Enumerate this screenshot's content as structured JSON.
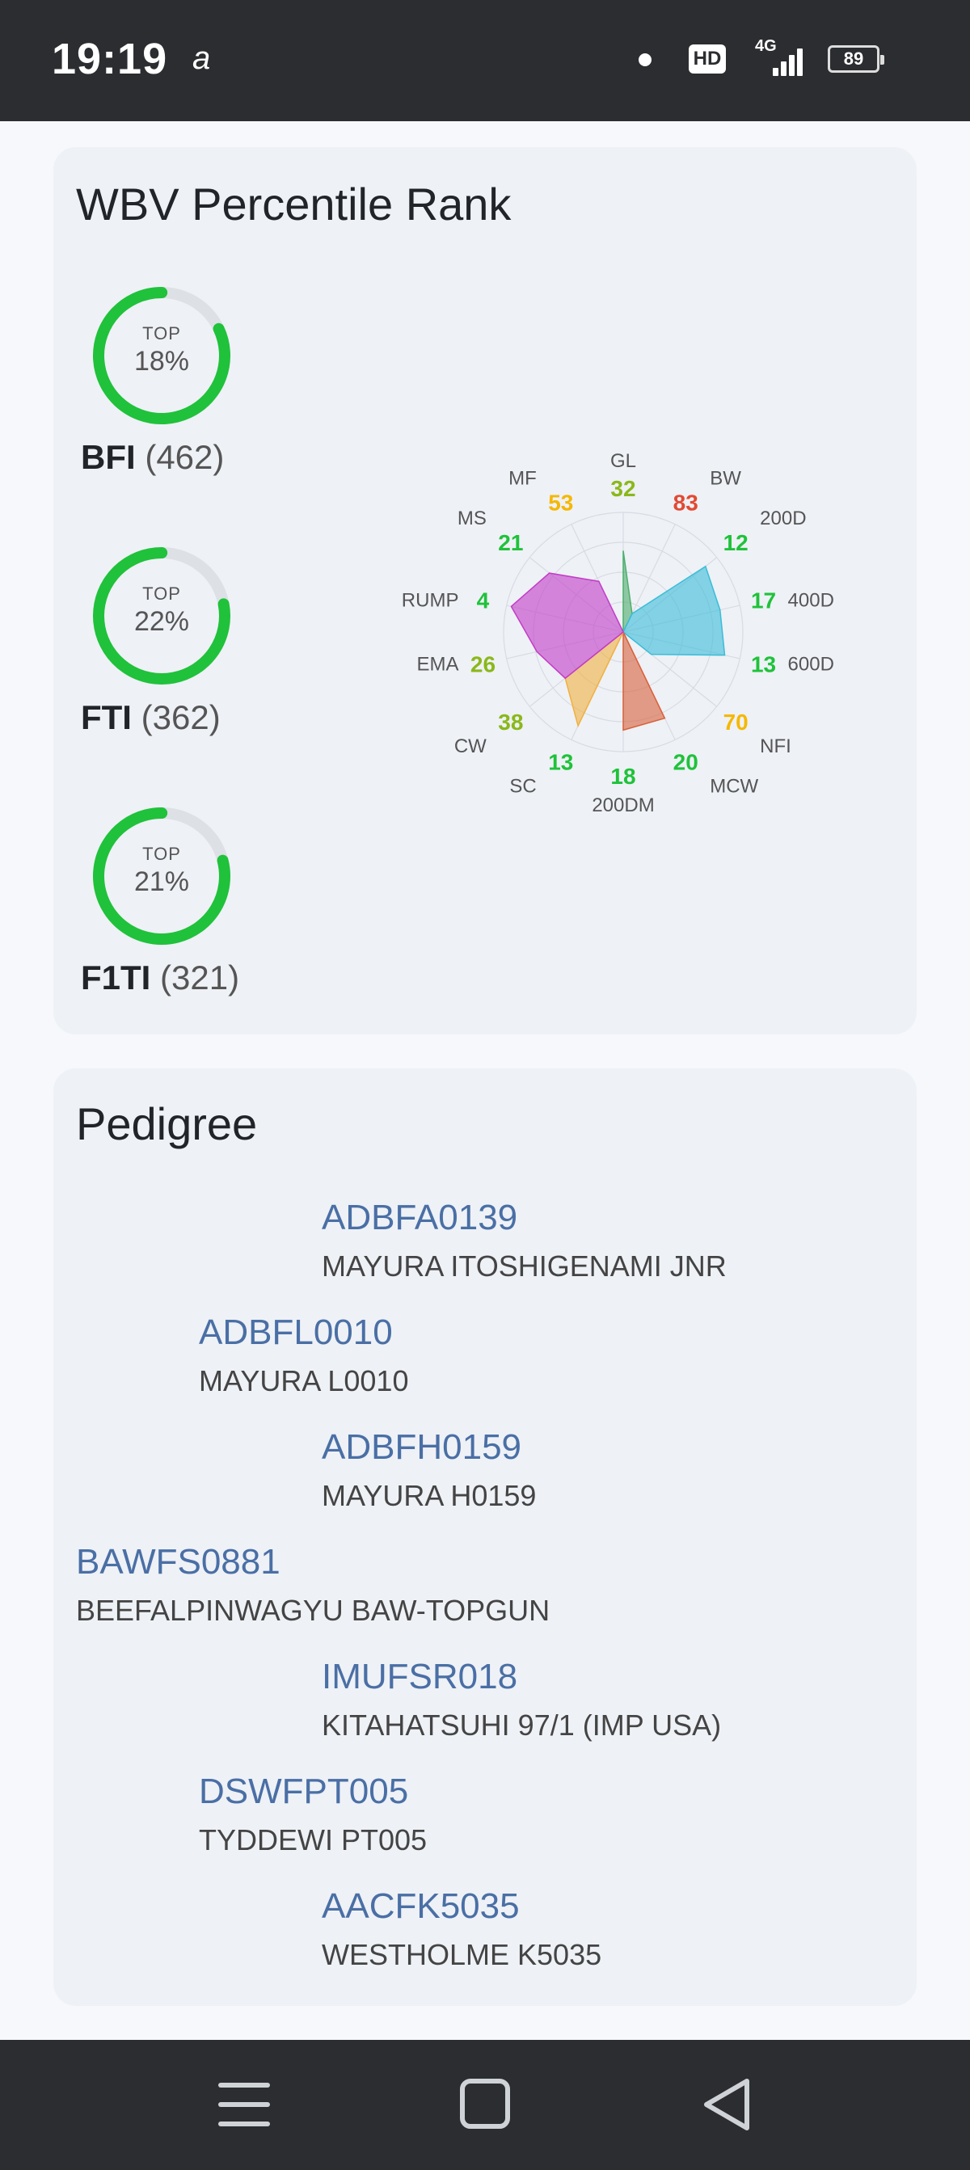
{
  "status_bar": {
    "time": "19:19",
    "glyph": "a",
    "hd": "HD",
    "network": "4G",
    "battery": "89"
  },
  "wbv": {
    "title": "WBV Percentile Rank",
    "indexes": [
      {
        "name": "BFI",
        "count": "(462)",
        "top_label": "TOP",
        "percent": "18%",
        "fraction": 0.82
      },
      {
        "name": "FTI",
        "count": "(362)",
        "top_label": "TOP",
        "percent": "22%",
        "fraction": 0.78
      },
      {
        "name": "F1TI",
        "count": "(321)",
        "top_label": "TOP",
        "percent": "21%",
        "fraction": 0.79
      }
    ],
    "ring_color": "#1fc23a",
    "ring_track_color": "#dde1e6"
  },
  "chart_data": {
    "type": "radar",
    "traits": [
      {
        "name": "GL",
        "value": "32",
        "color": "#8ab81a"
      },
      {
        "name": "BW",
        "value": "83",
        "color": "#e24a33"
      },
      {
        "name": "200D",
        "value": "12",
        "color": "#1fc23a"
      },
      {
        "name": "400D",
        "value": "17",
        "color": "#1fc23a"
      },
      {
        "name": "600D",
        "value": "13",
        "color": "#1fc23a"
      },
      {
        "name": "NFI",
        "value": "70",
        "color": "#f5b800"
      },
      {
        "name": "MCW",
        "value": "20",
        "color": "#1fc23a"
      },
      {
        "name": "200DM",
        "value": "18",
        "color": "#1fc23a"
      },
      {
        "name": "SC",
        "value": "13",
        "color": "#1fc23a"
      },
      {
        "name": "CW",
        "value": "38",
        "color": "#8ab81a"
      },
      {
        "name": "EMA",
        "value": "26",
        "color": "#8ab81a"
      },
      {
        "name": "RUMP",
        "value": "4",
        "color": "#1fc23a"
      },
      {
        "name": "MS",
        "value": "21",
        "color": "#1fc23a"
      },
      {
        "name": "MF",
        "value": "53",
        "color": "#f5b800"
      }
    ],
    "groups": [
      {
        "color": "#4cae6c",
        "trait_indices": [
          0,
          1
        ]
      },
      {
        "color": "#3bbcd8",
        "trait_indices": [
          1,
          2,
          3,
          4,
          5
        ]
      },
      {
        "color": "#d9603a",
        "trait_indices": [
          6,
          7
        ]
      },
      {
        "color": "#f0b040",
        "trait_indices": [
          8,
          9
        ]
      },
      {
        "color": "#c23cc8",
        "trait_indices": [
          9,
          10,
          11,
          12,
          13
        ]
      }
    ]
  },
  "pedigree": {
    "title": "Pedigree",
    "entries": [
      {
        "level": 2,
        "id": "ADBFA0139",
        "name": "MAYURA ITOSHIGENAMI JNR"
      },
      {
        "level": 1,
        "id": "ADBFL0010",
        "name": "MAYURA L0010"
      },
      {
        "level": 2,
        "id": "ADBFH0159",
        "name": "MAYURA H0159"
      },
      {
        "level": 0,
        "id": "BAWFS0881",
        "name": "BEEFALPINWAGYU BAW-TOPGUN"
      },
      {
        "level": 2,
        "id": "IMUFSR018",
        "name": "KITAHATSUHI 97/1 (IMP USA)"
      },
      {
        "level": 1,
        "id": "DSWFPT005",
        "name": "TYDDEWI PT005"
      },
      {
        "level": 2,
        "id": "AACFK5035",
        "name": "WESTHOLME K5035"
      }
    ]
  },
  "nav": {
    "icons": [
      "menu-icon",
      "home-square-icon",
      "back-triangle-icon"
    ]
  }
}
